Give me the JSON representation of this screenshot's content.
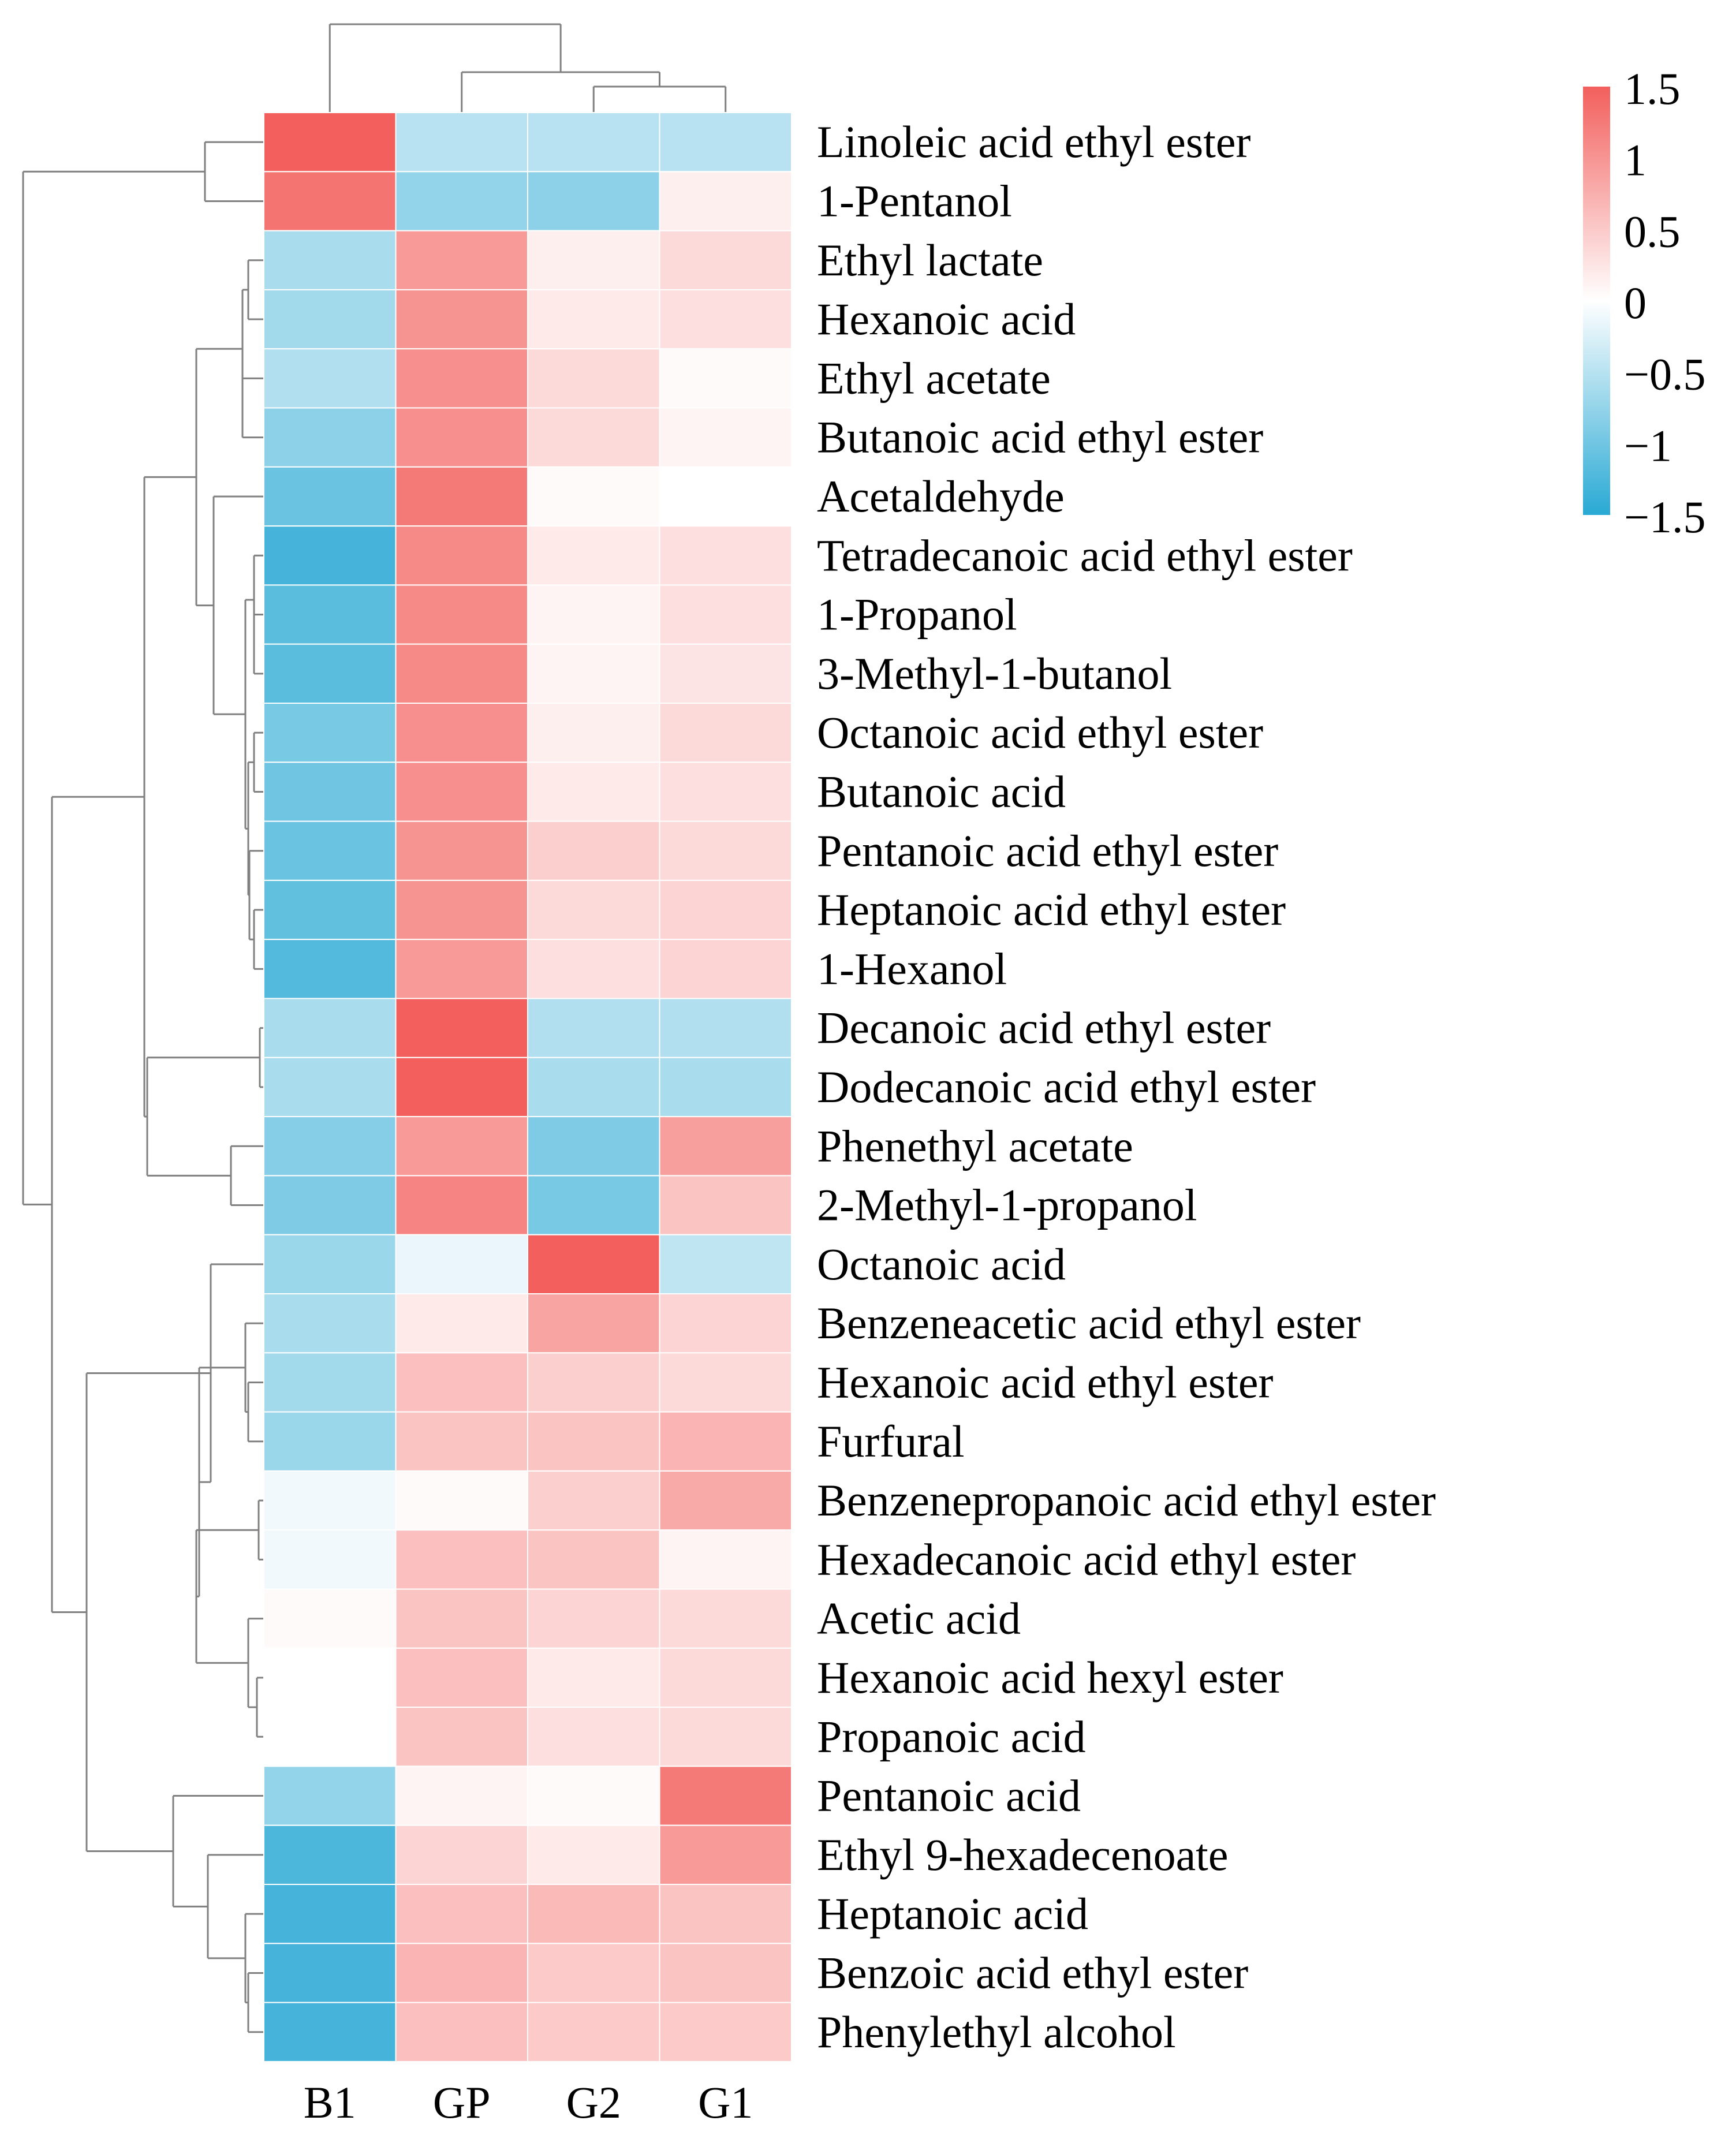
{
  "chart_data": {
    "type": "heatmap",
    "title": "",
    "columns": [
      "B1",
      "GP",
      "G2",
      "G1"
    ],
    "rows": [
      "Linoleic acid ethyl ester",
      "1-Pentanol",
      "Ethyl lactate",
      "Hexanoic acid",
      "Ethyl acetate",
      "Butanoic acid ethyl ester",
      "Acetaldehyde",
      "Tetradecanoic acid ethyl ester",
      "1-Propanol",
      "3-Methyl-1-butanol",
      "Octanoic acid ethyl ester",
      "Butanoic acid",
      "Pentanoic acid ethyl ester",
      "Heptanoic acid ethyl ester",
      "1-Hexanol",
      "Decanoic acid ethyl ester",
      "Dodecanoic acid ethyl ester",
      "Phenethyl acetate",
      "2-Methyl-1-propanol",
      "Octanoic acid",
      "Benzeneacetic acid ethyl ester",
      "Hexanoic acid ethyl ester",
      "Furfural",
      "Benzenepropanoic acid ethyl ester",
      "Hexadecanoic acid ethyl ester",
      "Acetic acid",
      "Hexanoic acid hexyl ester",
      "Propanoic acid",
      "Pentanoic acid",
      "Ethyl 9-hexadecenoate",
      "Heptanoic acid",
      "Benzoic acid ethyl ester",
      "Phenylethyl alcohol"
    ],
    "values": [
      [
        1.5,
        -0.5,
        -0.5,
        -0.5
      ],
      [
        1.3,
        -0.75,
        -0.8,
        0.15
      ],
      [
        -0.6,
        0.95,
        0.15,
        0.35
      ],
      [
        -0.65,
        1.0,
        0.2,
        0.3
      ],
      [
        -0.55,
        1.05,
        0.35,
        0.05
      ],
      [
        -0.8,
        1.05,
        0.35,
        0.1
      ],
      [
        -1.05,
        1.25,
        0.05,
        0.0
      ],
      [
        -1.3,
        1.1,
        0.2,
        0.3
      ],
      [
        -1.15,
        1.1,
        0.1,
        0.3
      ],
      [
        -1.15,
        1.1,
        0.1,
        0.25
      ],
      [
        -0.95,
        1.05,
        0.15,
        0.35
      ],
      [
        -1.0,
        1.05,
        0.2,
        0.3
      ],
      [
        -1.05,
        1.0,
        0.45,
        0.35
      ],
      [
        -1.1,
        1.0,
        0.35,
        0.4
      ],
      [
        -1.2,
        0.95,
        0.3,
        0.4
      ],
      [
        -0.6,
        1.6,
        -0.55,
        -0.55
      ],
      [
        -0.6,
        1.6,
        -0.6,
        -0.6
      ],
      [
        -0.85,
        0.95,
        -0.9,
        0.9
      ],
      [
        -0.9,
        1.15,
        -0.95,
        0.55
      ],
      [
        -0.7,
        -0.15,
        1.6,
        -0.45
      ],
      [
        -0.6,
        0.2,
        0.85,
        0.4
      ],
      [
        -0.65,
        0.6,
        0.45,
        0.35
      ],
      [
        -0.7,
        0.55,
        0.55,
        0.7
      ],
      [
        -0.1,
        0.05,
        0.45,
        0.8
      ],
      [
        -0.1,
        0.6,
        0.55,
        0.1
      ],
      [
        0.05,
        0.55,
        0.4,
        0.35
      ],
      [
        0.0,
        0.6,
        0.2,
        0.35
      ],
      [
        0.0,
        0.55,
        0.3,
        0.35
      ],
      [
        -0.75,
        0.1,
        0.05,
        1.25
      ],
      [
        -1.25,
        0.4,
        0.2,
        0.95
      ],
      [
        -1.3,
        0.6,
        0.65,
        0.55
      ],
      [
        -1.3,
        0.7,
        0.5,
        0.55
      ],
      [
        -1.3,
        0.6,
        0.5,
        0.5
      ]
    ],
    "color_scale": {
      "min": -1.5,
      "max": 1.5,
      "low_color": "#29a9d4",
      "mid_color": "#ffffff",
      "high_color": "#f25f5c"
    },
    "legend": {
      "position": "top-right",
      "tick_labels": [
        "1.5",
        "1",
        "0.5",
        "0",
        "−0.5",
        "−1",
        "−1.5"
      ],
      "tick_values": [
        1.5,
        1,
        0.5,
        0,
        -0.5,
        -1,
        -1.5
      ]
    },
    "row_dendrogram": true,
    "column_dendrogram": true,
    "grid": false
  }
}
